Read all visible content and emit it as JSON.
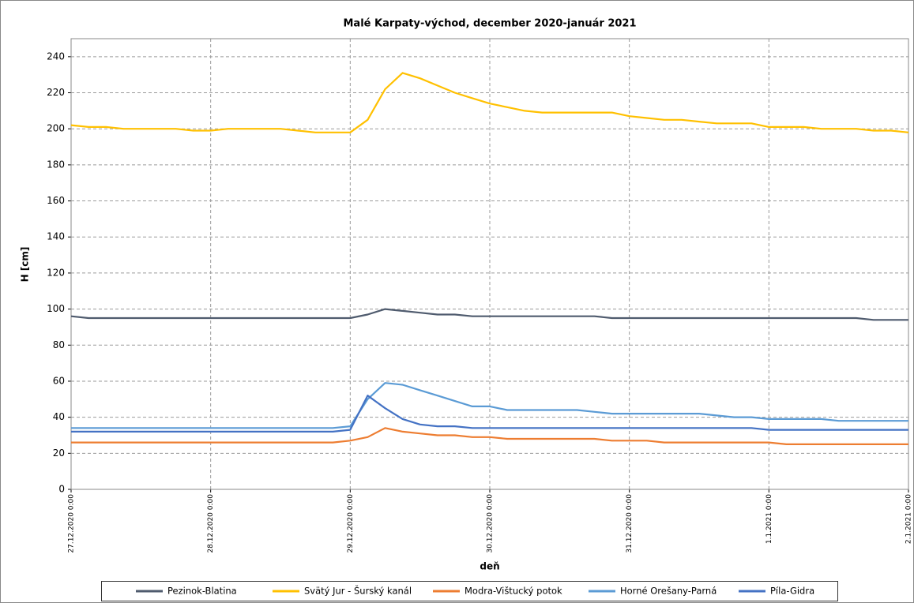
{
  "chart_data": {
    "type": "line",
    "title": "Malé Karpaty-východ, december 2020-január 2021",
    "x_label": "deň",
    "y_label": "H [cm]",
    "x": [
      "27.12.2020 0:00",
      "27.12.2020 3:00",
      "27.12.2020 6:00",
      "27.12.2020 9:00",
      "27.12.2020 12:00",
      "27.12.2020 15:00",
      "27.12.2020 18:00",
      "27.12.2020 21:00",
      "28.12.2020 0:00",
      "28.12.2020 3:00",
      "28.12.2020 6:00",
      "28.12.2020 9:00",
      "28.12.2020 12:00",
      "28.12.2020 15:00",
      "28.12.2020 18:00",
      "28.12.2020 21:00",
      "29.12.2020 0:00",
      "29.12.2020 3:00",
      "29.12.2020 6:00",
      "29.12.2020 9:00",
      "29.12.2020 12:00",
      "29.12.2020 15:00",
      "29.12.2020 18:00",
      "29.12.2020 21:00",
      "30.12.2020 0:00",
      "30.12.2020 3:00",
      "30.12.2020 6:00",
      "30.12.2020 9:00",
      "30.12.2020 12:00",
      "30.12.2020 15:00",
      "30.12.2020 18:00",
      "30.12.2020 21:00",
      "31.12.2020 0:00",
      "31.12.2020 3:00",
      "31.12.2020 6:00",
      "31.12.2020 9:00",
      "31.12.2020 12:00",
      "31.12.2020 15:00",
      "31.12.2020 18:00",
      "31.12.2020 21:00",
      "1.1.2021 0:00",
      "1.1.2021 3:00",
      "1.1.2021 6:00",
      "1.1.2021 9:00",
      "1.1.2021 12:00",
      "1.1.2021 15:00",
      "1.1.2021 18:00",
      "1.1.2021 21:00",
      "2.1.2021 0:00"
    ],
    "series": [
      {
        "name": "Pezinok-Blatina",
        "color": "#4f5b6e",
        "values": [
          96,
          95,
          95,
          95,
          95,
          95,
          95,
          95,
          95,
          95,
          95,
          95,
          95,
          95,
          95,
          95,
          95,
          97,
          100,
          99,
          98,
          97,
          97,
          96,
          96,
          96,
          96,
          96,
          96,
          96,
          96,
          95,
          95,
          95,
          95,
          95,
          95,
          95,
          95,
          95,
          95,
          95,
          95,
          95,
          95,
          95,
          94,
          94,
          94
        ]
      },
      {
        "name": "Svätý Jur - Šurský kanál",
        "color": "#ffc000",
        "values": [
          202,
          201,
          201,
          200,
          200,
          200,
          200,
          199,
          199,
          200,
          200,
          200,
          200,
          199,
          198,
          198,
          198,
          205,
          222,
          231,
          228,
          224,
          220,
          217,
          214,
          212,
          210,
          209,
          209,
          209,
          209,
          209,
          207,
          206,
          205,
          205,
          204,
          203,
          203,
          203,
          201,
          201,
          201,
          200,
          200,
          200,
          199,
          199,
          198
        ]
      },
      {
        "name": "Modra-Vištucký potok",
        "color": "#ed7d31",
        "values": [
          26,
          26,
          26,
          26,
          26,
          26,
          26,
          26,
          26,
          26,
          26,
          26,
          26,
          26,
          26,
          26,
          27,
          29,
          34,
          32,
          31,
          30,
          30,
          29,
          29,
          28,
          28,
          28,
          28,
          28,
          28,
          27,
          27,
          27,
          26,
          26,
          26,
          26,
          26,
          26,
          26,
          25,
          25,
          25,
          25,
          25,
          25,
          25,
          25
        ]
      },
      {
        "name": "Horné Orešany-Parná",
        "color": "#5b9bd5",
        "values": [
          34,
          34,
          34,
          34,
          34,
          34,
          34,
          34,
          34,
          34,
          34,
          34,
          34,
          34,
          34,
          34,
          35,
          50,
          59,
          58,
          55,
          52,
          49,
          46,
          46,
          44,
          44,
          44,
          44,
          44,
          43,
          42,
          42,
          42,
          42,
          42,
          42,
          41,
          40,
          40,
          39,
          39,
          39,
          39,
          38,
          38,
          38,
          38,
          38
        ]
      },
      {
        "name": "Píla-Gidra",
        "color": "#4472c4",
        "values": [
          32,
          32,
          32,
          32,
          32,
          32,
          32,
          32,
          32,
          32,
          32,
          32,
          32,
          32,
          32,
          32,
          33,
          52,
          45,
          39,
          36,
          35,
          35,
          34,
          34,
          34,
          34,
          34,
          34,
          34,
          34,
          34,
          34,
          34,
          34,
          34,
          34,
          34,
          34,
          34,
          33,
          33,
          33,
          33,
          33,
          33,
          33,
          33,
          33
        ]
      }
    ],
    "xlim": [
      "27.12.2020 0:00",
      "2.1.2021 0:00"
    ],
    "xticks": [
      "27.12.2020 0:00",
      "28.12.2020 0:00",
      "29.12.2020 0:00",
      "30.12.2020 0:00",
      "31.12.2020 0:00",
      "1.1.2021 0:00",
      "2.1.2021 0:00"
    ],
    "ylim": [
      0,
      250
    ],
    "yticks": [
      0,
      20,
      40,
      60,
      80,
      100,
      120,
      140,
      160,
      180,
      200,
      220,
      240
    ],
    "grid": true,
    "legend": "bottom"
  }
}
